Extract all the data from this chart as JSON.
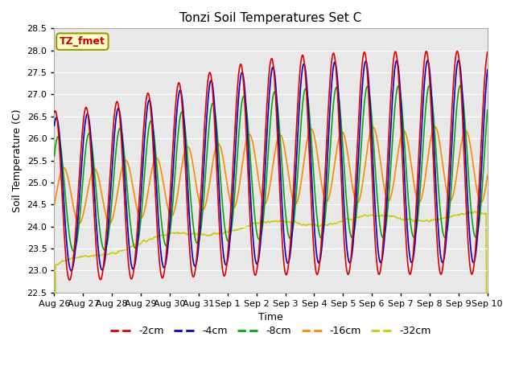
{
  "title": "Tonzi Soil Temperatures Set C",
  "xlabel": "Time",
  "ylabel": "Soil Temperature (C)",
  "ylim": [
    22.5,
    28.5
  ],
  "yticks": [
    22.5,
    23.0,
    23.5,
    24.0,
    24.5,
    25.0,
    25.5,
    26.0,
    26.5,
    27.0,
    27.5,
    28.0,
    28.5
  ],
  "xtick_labels": [
    "Aug 26",
    "Aug 27",
    "Aug 28",
    "Aug 29",
    "Aug 30",
    "Aug 31",
    "Sep 1",
    "Sep 2",
    "Sep 3",
    "Sep 4",
    "Sep 5",
    "Sep 6",
    "Sep 7",
    "Sep 8",
    "Sep 9",
    "Sep 10"
  ],
  "legend_label": "TZ_fmet",
  "legend_box_color": "#ffffcc",
  "legend_box_edge": "#999900",
  "legend_text_color": "#cc0000",
  "col_2cm": "#dd0000",
  "col_4cm": "#0000cc",
  "col_8cm": "#00aa00",
  "col_16cm": "#ff8800",
  "col_32cm": "#cccc00",
  "bg_color": "#e8e8e8",
  "fig_bg": "#ffffff",
  "linewidth": 1.2
}
